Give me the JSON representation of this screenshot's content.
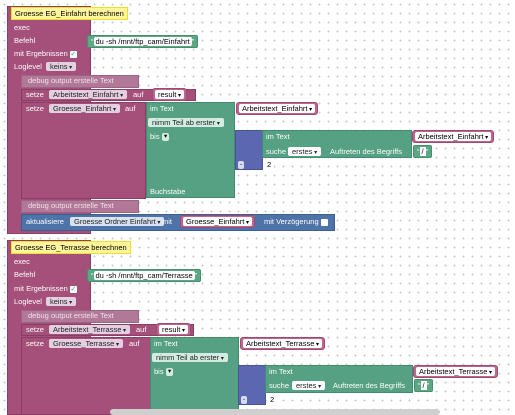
{
  "b1": {
    "title": "Groesse EG_Einfahrt berechnen",
    "exec": "exec",
    "befehl": "Befehl",
    "befehl_value": "du -sh /mnt/ftp_cam/Einfahrt",
    "mit_ergebnissen": "mit Ergebnissen",
    "loglevel": "Loglevel",
    "loglevel_value": "keins",
    "debug1": "debug output erstelle Text",
    "setze": "setze",
    "var1": "Arbeitstext_Einfahrt",
    "auf": "auf",
    "result": "result",
    "var2": "Groesse_Einfahrt",
    "im_text": "im Text",
    "teil": "nimm Teil ab erster",
    "bis": "bis",
    "buchstabe": "Buchstabe",
    "suche": "suche",
    "erstes": "erstes",
    "auftreten": "Auftreten des Begriffs",
    "search_str": "/",
    "minus": "-",
    "num": "2",
    "debug2": "debug output erstelle Text",
    "aktualisiere": "aktualisiere",
    "ordner": "Groesse Ordner Einfahrt",
    "mit": "mit",
    "verzoegerung": "mit Verzögerung"
  },
  "b2": {
    "title": "Groesse EG_Terrasse berechnen",
    "exec": "exec",
    "befehl": "Befehl",
    "befehl_value": "du -sh /mnt/ftp_cam/Terrasse",
    "mit_ergebnissen": "mit Ergebnissen",
    "loglevel": "Loglevel",
    "loglevel_value": "keins",
    "debug1": "debug output erstelle Text",
    "setze": "setze",
    "var1": "Arbeitstext_Terrasse",
    "auf": "auf",
    "result": "result",
    "var2": "Groesse_Terrasse",
    "im_text": "im Text",
    "teil": "nimm Teil ab erster",
    "bis": "bis",
    "suche": "suche",
    "erstes": "erstes",
    "auftreten": "Auftreten des Begriffs",
    "search_str": "/",
    "minus": "-",
    "num": "2"
  },
  "colors": {
    "event": "#a5507a",
    "variable": "#c06590",
    "text": "#56a083",
    "math": "#5b67b0",
    "state": "#4d73a8"
  }
}
